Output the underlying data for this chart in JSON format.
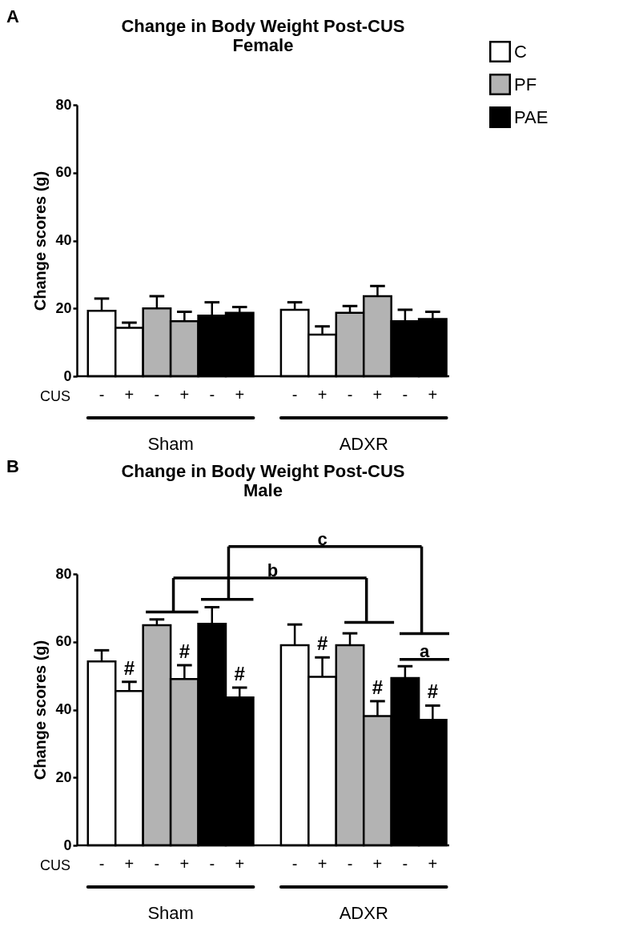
{
  "chart_data": [
    {
      "type": "bar",
      "title": "Change in Body Weight Post-CUS",
      "subtitle": "Female",
      "ylabel": "Change scores (g)",
      "xlabel": "CUS",
      "categories": [
        "-",
        "+",
        "-",
        "+",
        "-",
        "+",
        "-",
        "+",
        "-",
        "+",
        "-",
        "+"
      ],
      "series": [
        {
          "name": "C",
          "color": "#ffffff",
          "values": [
            19.3,
            14.3,
            null,
            null,
            null,
            null,
            19.6,
            12.3,
            null,
            null,
            null,
            null
          ],
          "errors": [
            [
              19.3,
              22.9
            ],
            [
              14.3,
              15.8
            ],
            null,
            null,
            null,
            null,
            [
              19.6,
              21.8
            ],
            [
              12.3,
              14.7
            ],
            null,
            null,
            null,
            null
          ]
        },
        {
          "name": "PF",
          "color": "#b3b3b3",
          "values": [
            null,
            null,
            20.0,
            16.2,
            null,
            null,
            null,
            null,
            18.7,
            23.6,
            null,
            null
          ],
          "errors": [
            null,
            null,
            [
              20.0,
              23.6
            ],
            [
              16.2,
              19.0
            ],
            null,
            null,
            null,
            null,
            [
              18.7,
              20.7
            ],
            [
              23.6,
              26.6
            ],
            null,
            null
          ]
        },
        {
          "name": "PAE",
          "color": "#000000",
          "values": [
            null,
            null,
            null,
            null,
            17.9,
            18.7,
            null,
            null,
            null,
            null,
            16.2,
            16.9
          ],
          "errors": [
            null,
            null,
            null,
            null,
            [
              17.9,
              21.8
            ],
            [
              18.7,
              20.4
            ],
            null,
            null,
            null,
            null,
            [
              16.2,
              19.6
            ],
            [
              16.9,
              19.0
            ]
          ]
        }
      ],
      "ylim": [
        0,
        80
      ],
      "yticks": [
        0,
        20,
        40,
        60,
        80
      ],
      "grid": false,
      "legend": "top right",
      "annotations": [
        "A",
        "Sham",
        "ADXR"
      ]
    },
    {
      "type": "bar",
      "title": "Change in Body Weight Post-CUS",
      "subtitle": "Male",
      "ylabel": "Change scores (g)",
      "xlabel": "CUS",
      "categories": [
        "-",
        "+",
        "-",
        "+",
        "-",
        "+",
        "-",
        "+",
        "-",
        "+",
        "-",
        "+"
      ],
      "series": [
        {
          "color": "#ffffff",
          "values": [
            54.2,
            45.5,
            null,
            null,
            null,
            null,
            59.0,
            49.7,
            null,
            null,
            null,
            null
          ],
          "errors": [
            [
              54.2,
              57.5
            ],
            [
              45.5,
              48.2
            ],
            null,
            null,
            null,
            null,
            [
              59.0,
              65.1
            ],
            [
              49.7,
              55.4
            ],
            null,
            null,
            null,
            null
          ],
          "value_labels": [
            null,
            "#",
            null,
            null,
            null,
            null,
            null,
            "#",
            null,
            null,
            null,
            null
          ]
        },
        {
          "color": "#b3b3b3",
          "values": [
            null,
            null,
            64.9,
            49.0,
            null,
            null,
            null,
            null,
            59.0,
            38.1,
            null,
            null
          ],
          "errors": [
            null,
            null,
            [
              64.9,
              66.6
            ],
            [
              49.0,
              53.1
            ],
            null,
            null,
            null,
            null,
            [
              59.0,
              62.5
            ],
            [
              38.1,
              42.5
            ],
            null,
            null
          ],
          "value_labels": [
            null,
            null,
            null,
            "#",
            null,
            null,
            null,
            null,
            null,
            "#",
            null,
            null
          ]
        },
        {
          "color": "#000000",
          "values": [
            null,
            null,
            null,
            null,
            65.3,
            43.6,
            null,
            null,
            null,
            null,
            49.3,
            37.0
          ],
          "errors": [
            null,
            null,
            null,
            null,
            [
              65.3,
              70.2
            ],
            [
              43.6,
              46.5
            ],
            null,
            null,
            null,
            null,
            [
              49.3,
              52.8
            ],
            [
              37.0,
              41.2
            ]
          ],
          "value_labels": [
            null,
            null,
            null,
            null,
            null,
            "#",
            null,
            null,
            null,
            null,
            null,
            "#"
          ]
        }
      ],
      "ylim": [
        0,
        80
      ],
      "yticks": [
        0,
        20,
        40,
        60,
        80
      ],
      "grid": false,
      "legend": false,
      "annotations": [
        "B",
        "Sham",
        "ADXR",
        "c",
        "b",
        "a"
      ]
    }
  ]
}
